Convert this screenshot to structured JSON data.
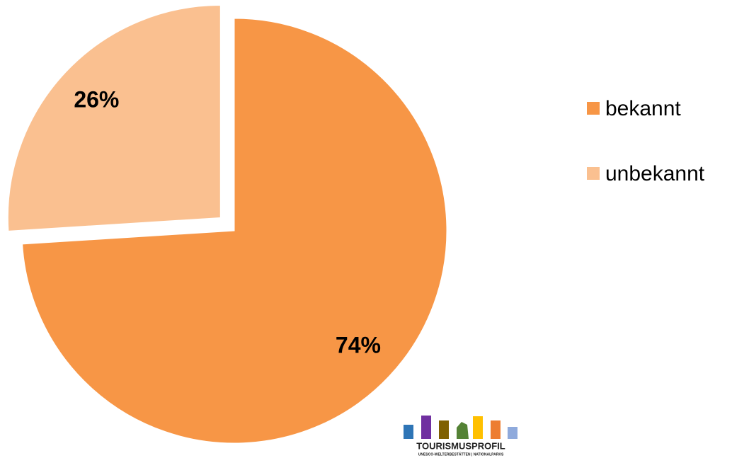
{
  "chart_data": {
    "type": "pie",
    "categories": [
      "bekannt",
      "unbekannt"
    ],
    "values": [
      74,
      26
    ],
    "value_labels": [
      "74%",
      "26%"
    ],
    "colors": [
      "#f79646",
      "#fac090"
    ],
    "explode": [
      false,
      true
    ],
    "legend": "right"
  },
  "logo": {
    "title": "TOURISMUSPROFIL",
    "subtitle": "UNESCO-WELTERBESTÄTTEN | NATIONALPARKS"
  }
}
